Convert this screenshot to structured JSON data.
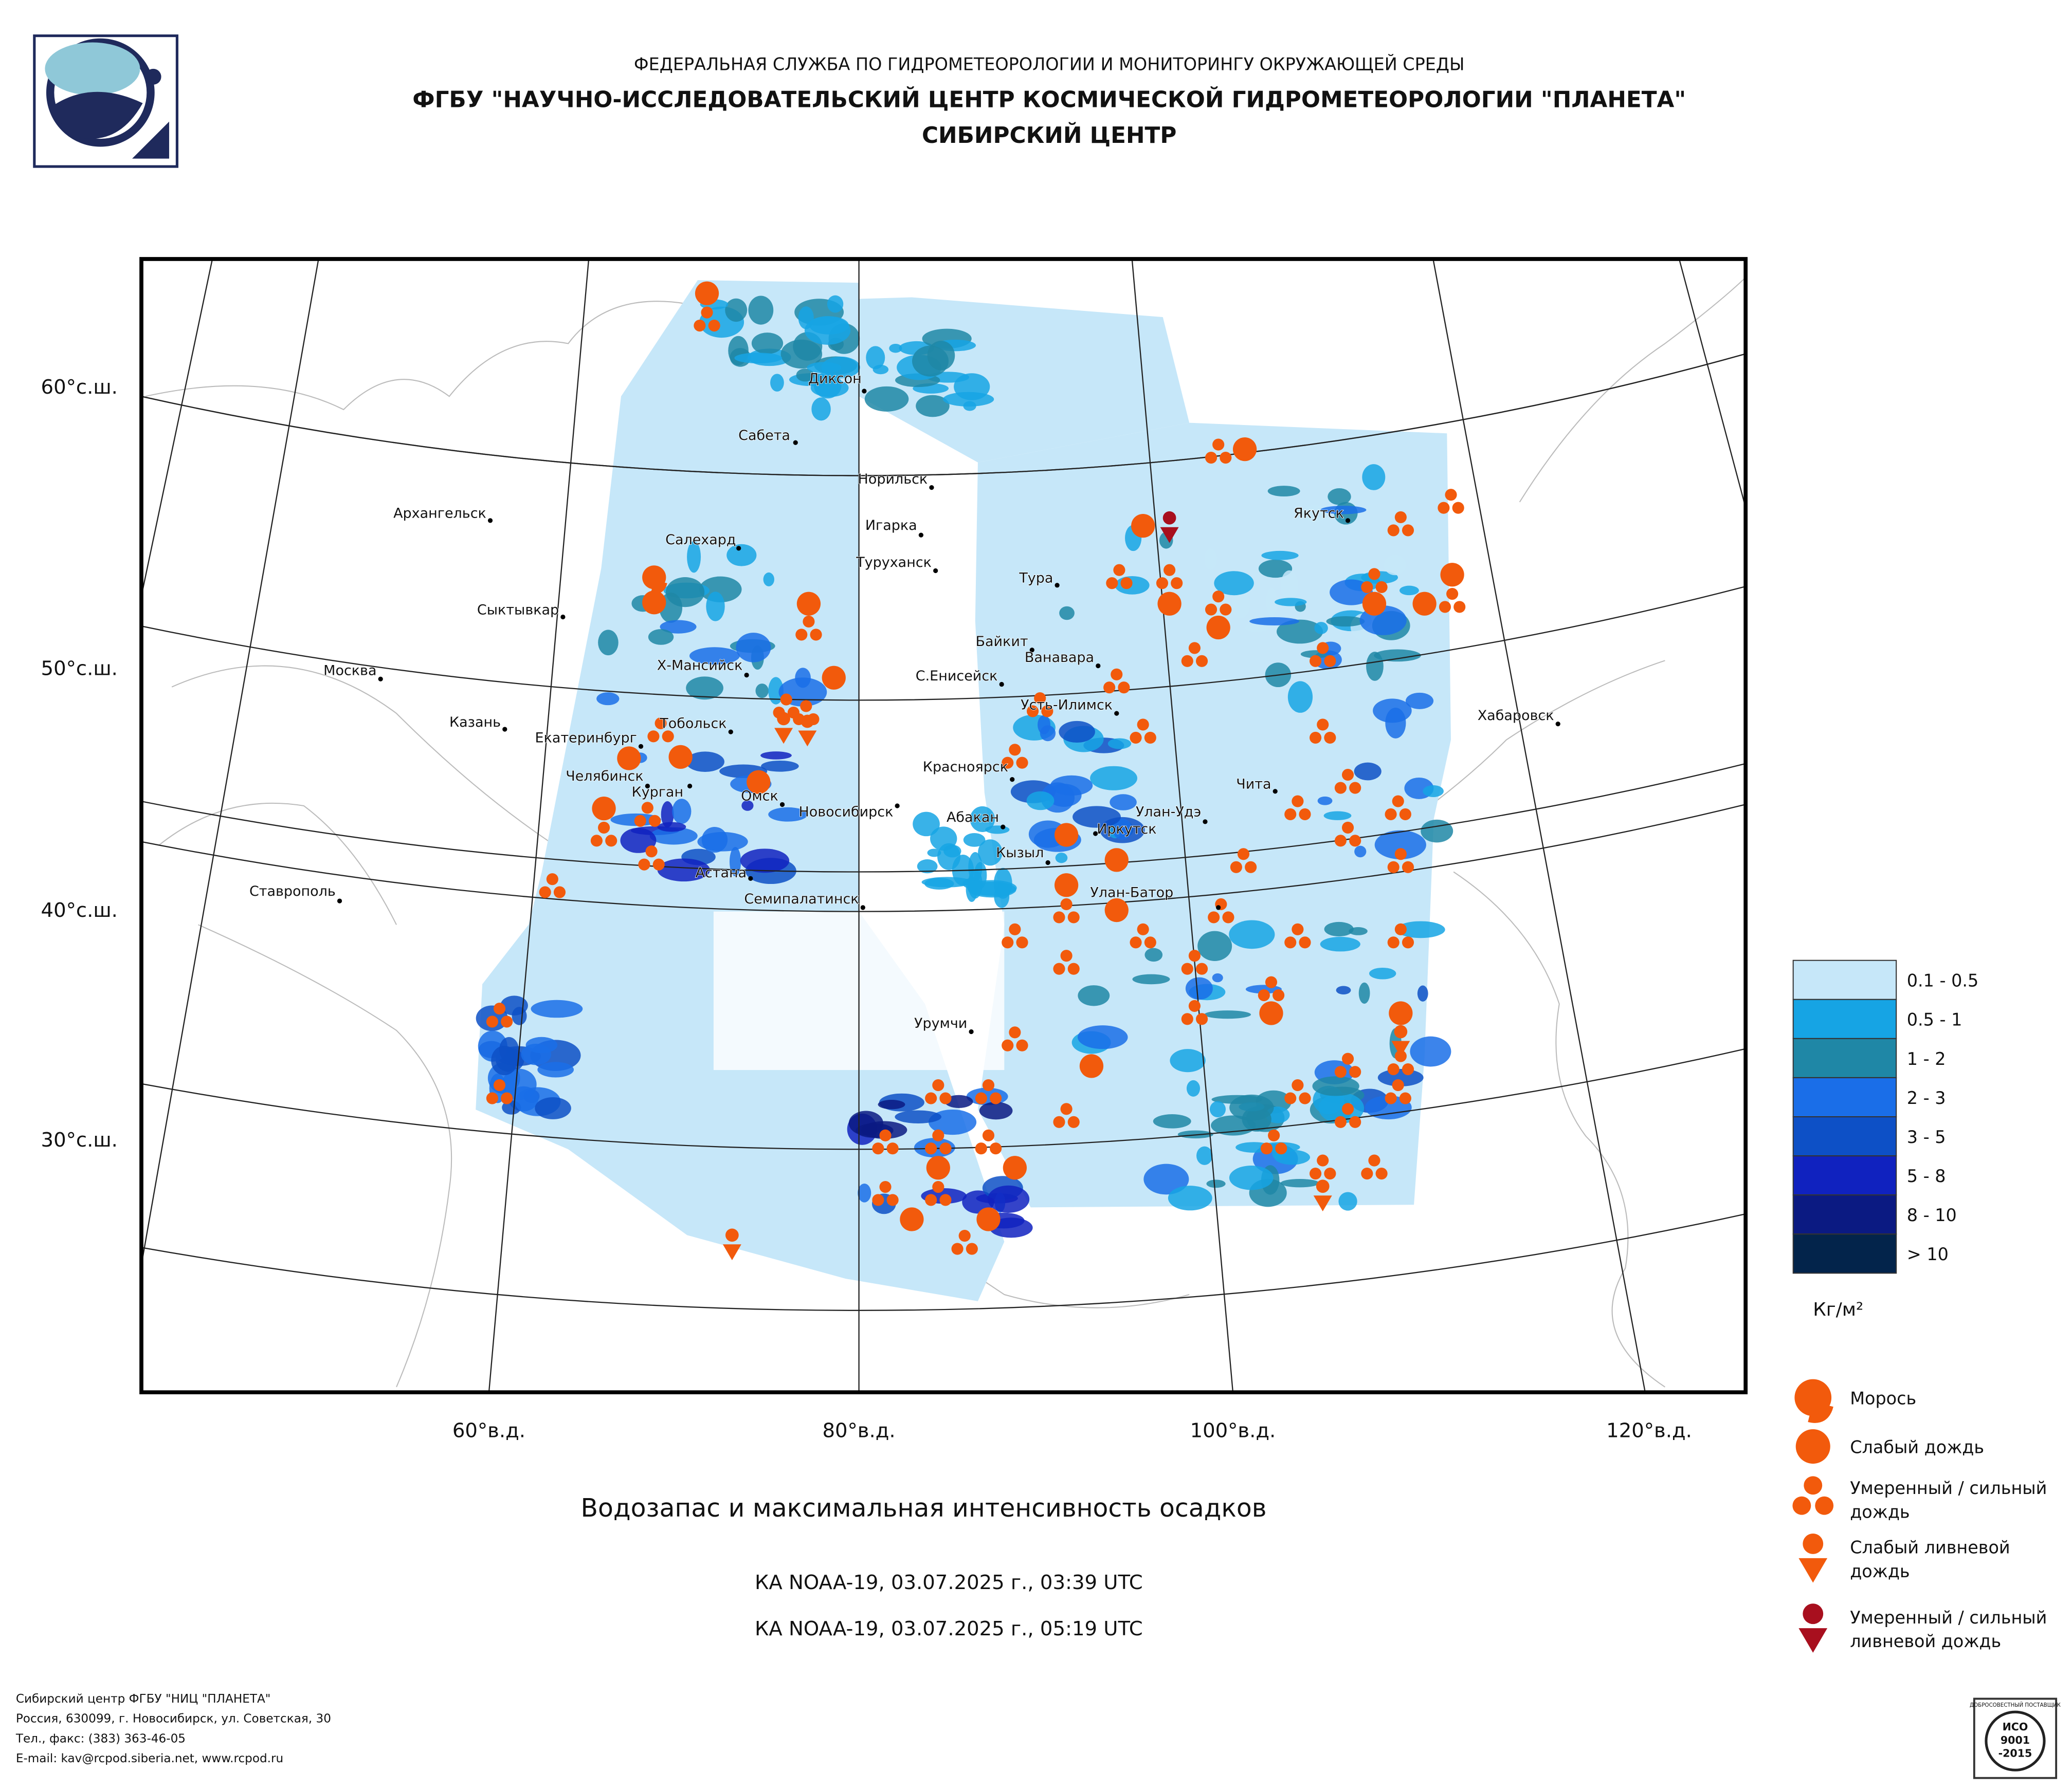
{
  "header": {
    "agency": "ФЕДЕРАЛЬНАЯ СЛУЖБА ПО ГИДРОМЕТЕОРОЛОГИИ И МОНИТОРИНГУ ОКРУЖАЮЩЕЙ СРЕДЫ",
    "center": "ФГБУ \"НАУЧНО-ИССЛЕДОВАТЕЛЬСКИЙ ЦЕНТР КОСМИЧЕСКОЙ ГИДРОМЕТЕОРОЛОГИИ \"ПЛАНЕТА\"",
    "branch": "СИБИРСКИЙ ЦЕНТР"
  },
  "map": {
    "cities": [
      "Диксон",
      "Сабета",
      "Норильск",
      "Архангельск",
      "Игарка",
      "Салехард",
      "Туруханск",
      "Тура",
      "Якутск",
      "Сыктывкар",
      "Байкит",
      "Ванавара",
      "Х-Мансийск",
      "С.Енисейск",
      "Москва",
      "Усть-Илимск",
      "Тобольск",
      "Казань",
      "Хабаровск",
      "Екатеринбург",
      "Красноярск",
      "Челябинск",
      "Курган",
      "Омск",
      "Новосибирск",
      "Чита",
      "Улан-Удэ",
      "Абакан",
      "Иркутск",
      "Кызыл",
      "Астана",
      "Ставрополь",
      "Улан-Батор",
      "Семипалатинск",
      "Урумчи"
    ],
    "lat_labels": [
      "60°с.ш.",
      "50°с.ш.",
      "40°с.ш.",
      "30°с.ш."
    ],
    "lon_labels": [
      "60°в.д.",
      "80°в.д.",
      "100°в.д.",
      "120°в.д."
    ]
  },
  "legend": {
    "water": [
      {
        "label": "0.1 - 0.5",
        "color": "#c6e7f9"
      },
      {
        "label": "0.5 - 1",
        "color": "#16a4e4"
      },
      {
        "label": "1 - 2",
        "color": "#1f87a6"
      },
      {
        "label": "2 - 3",
        "color": "#1a6ee8"
      },
      {
        "label": "3 - 5",
        "color": "#0d50c6"
      },
      {
        "label": "5 - 8",
        "color": "#1022bf"
      },
      {
        "label": "8 - 10",
        "color": "#0b1a82"
      },
      {
        "label": "> 10",
        "color": "#03244b"
      }
    ],
    "unit": "Кг/м²",
    "symbols": [
      [
        "Морось"
      ],
      [
        "Слабый дождь"
      ],
      [
        "Умеренный / сильный",
        "дождь"
      ],
      [
        "Слабый ливневой",
        "дождь"
      ],
      [
        "Умеренный / сильный",
        "ливневой дождь"
      ]
    ]
  },
  "caption": {
    "title": "Водозапас и максимальная интенсивность осадков",
    "passes": [
      "КА NOAA-19, 03.07.2025 г., 03:39 UTC",
      "КА NOAA-19, 03.07.2025 г., 05:19 UTC"
    ]
  },
  "footer": [
    "Сибирский центр ФГБУ \"НИЦ \"ПЛАНЕТА\"",
    "Россия, 630099, г. Новосибирск, ул. Советская, 30",
    "Тел., факс: (383) 363-46-05",
    "E-mail: kav@rcpod.siberia.net, www.rcpod.ru"
  ],
  "badge": [
    "ДОБРОСОВЕСТНЫЙ ПОСТАВЩИК",
    "ИСО",
    "9001",
    "-2015"
  ]
}
